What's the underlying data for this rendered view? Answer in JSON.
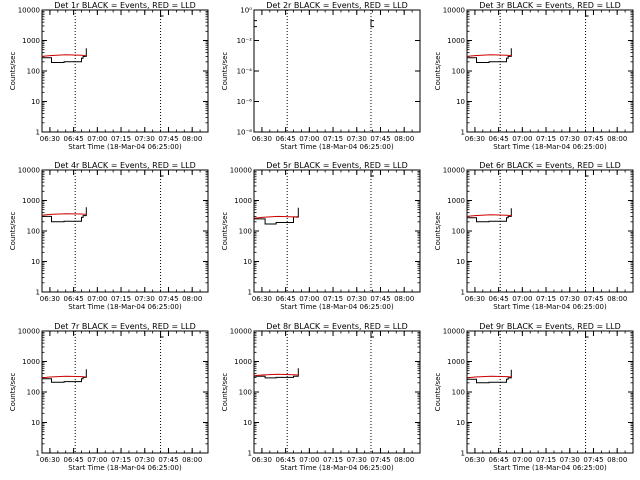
{
  "chart_data": [
    {
      "type": "line",
      "title": "Det 1r BLACK = Events, RED = LLD",
      "xlabel": "Start Time (18-Mar-04 06:25:00)",
      "ylabel": "Counts/sec",
      "y_scale": "log",
      "ylim": [
        1,
        10000
      ],
      "yticks": [
        "1",
        "10",
        "100",
        "1000",
        "10000"
      ],
      "xlim": [
        "06:25",
        "08:10"
      ],
      "xticks": [
        "06:30",
        "06:45",
        "07:00",
        "07:15",
        "07:30",
        "07:45",
        "08:00"
      ],
      "vlines": [
        "06:46",
        "07:40"
      ],
      "marker": {
        "x": "07:40",
        "y": 10000
      },
      "series": [
        {
          "color": "#000000",
          "x": [
            "06:25",
            "06:31",
            "06:31",
            "06:39",
            "06:39",
            "06:50",
            "06:50",
            "06:51",
            "06:51",
            "06:53",
            "06:53"
          ],
          "y": [
            270,
            270,
            190,
            190,
            200,
            200,
            260,
            260,
            300,
            300,
            560
          ]
        },
        {
          "color": "#cc0000",
          "x": [
            "06:25",
            "06:30",
            "06:40",
            "06:50",
            "06:53"
          ],
          "y": [
            300,
            320,
            340,
            330,
            320
          ]
        }
      ]
    },
    {
      "type": "line",
      "title": "Det 2r BLACK = Events, RED = LLD",
      "xlabel": "Start Time (18-Mar-04 06:25:00)",
      "ylabel": "Counts/sec",
      "y_scale": "log",
      "ylim": [
        1e-08,
        1
      ],
      "yticks": [
        "10⁻⁸",
        "10⁻⁶",
        "10⁻⁴",
        "10⁻²",
        "10⁰"
      ],
      "xlim": [
        "06:25",
        "08:10"
      ],
      "xticks": [
        "06:30",
        "06:45",
        "07:00",
        "07:15",
        "07:30",
        "07:45",
        "08:00"
      ],
      "vlines": [
        "06:46",
        "07:39"
      ],
      "marker": {
        "x": "07:39",
        "y": 0.2
      },
      "marker2": {
        "x": "06:25",
        "y": 0.2
      },
      "series": []
    },
    {
      "type": "line",
      "title": "Det 3r BLACK = Events, RED = LLD",
      "xlabel": "Start Time (18-Mar-04 06:25:00)",
      "ylabel": "Counts/sec",
      "y_scale": "log",
      "ylim": [
        1,
        10000
      ],
      "yticks": [
        "1",
        "10",
        "100",
        "1000",
        "10000"
      ],
      "xlim": [
        "06:25",
        "08:10"
      ],
      "xticks": [
        "06:30",
        "06:45",
        "07:00",
        "07:15",
        "07:30",
        "07:45",
        "08:00"
      ],
      "vlines": [
        "06:46",
        "07:40"
      ],
      "marker": {
        "x": "07:40",
        "y": 10000
      },
      "series": [
        {
          "color": "#000000",
          "x": [
            "06:25",
            "06:31",
            "06:31",
            "06:39",
            "06:39",
            "06:50",
            "06:50",
            "06:51",
            "06:51",
            "06:53",
            "06:53"
          ],
          "y": [
            270,
            270,
            190,
            190,
            200,
            200,
            260,
            260,
            300,
            300,
            560
          ]
        },
        {
          "color": "#cc0000",
          "x": [
            "06:25",
            "06:30",
            "06:40",
            "06:50",
            "06:53"
          ],
          "y": [
            300,
            320,
            340,
            330,
            320
          ]
        }
      ]
    },
    {
      "type": "line",
      "title": "Det 4r BLACK = Events, RED = LLD",
      "xlabel": "Start Time (18-Mar-04 06:25:00)",
      "ylabel": "Counts/sec",
      "y_scale": "log",
      "ylim": [
        1,
        10000
      ],
      "yticks": [
        "1",
        "10",
        "100",
        "1000",
        "10000"
      ],
      "xlim": [
        "06:25",
        "08:10"
      ],
      "xticks": [
        "06:30",
        "06:45",
        "07:00",
        "07:15",
        "07:30",
        "07:45",
        "08:00"
      ],
      "vlines": [
        "06:46",
        "07:40"
      ],
      "marker": {
        "x": "07:40",
        "y": 10000
      },
      "series": [
        {
          "color": "#000000",
          "x": [
            "06:25",
            "06:31",
            "06:31",
            "06:39",
            "06:39",
            "06:50",
            "06:50",
            "06:51",
            "06:51",
            "06:53",
            "06:53"
          ],
          "y": [
            300,
            300,
            200,
            200,
            210,
            210,
            280,
            280,
            320,
            320,
            600
          ]
        },
        {
          "color": "#cc0000",
          "x": [
            "06:25",
            "06:30",
            "06:40",
            "06:50",
            "06:53"
          ],
          "y": [
            330,
            350,
            370,
            360,
            350
          ]
        }
      ]
    },
    {
      "type": "line",
      "title": "Det 5r BLACK = Events, RED = LLD",
      "xlabel": "Start Time (18-Mar-04 06:25:00)",
      "ylabel": "Counts/sec",
      "y_scale": "log",
      "ylim": [
        1,
        10000
      ],
      "yticks": [
        "1",
        "10",
        "100",
        "1000",
        "10000"
      ],
      "xlim": [
        "06:25",
        "08:10"
      ],
      "xticks": [
        "06:30",
        "06:45",
        "07:00",
        "07:15",
        "07:30",
        "07:45",
        "08:00"
      ],
      "vlines": [
        "06:46",
        "07:39"
      ],
      "marker": {
        "x": "07:39",
        "y": 10000
      },
      "series": [
        {
          "color": "#000000",
          "x": [
            "06:25",
            "06:32",
            "06:32",
            "06:39",
            "06:39",
            "06:50",
            "06:50",
            "06:53",
            "06:53"
          ],
          "y": [
            250,
            250,
            170,
            170,
            190,
            190,
            290,
            290,
            580
          ]
        },
        {
          "color": "#cc0000",
          "x": [
            "06:25",
            "06:30",
            "06:40",
            "06:50",
            "06:53"
          ],
          "y": [
            260,
            280,
            300,
            290,
            280
          ]
        }
      ]
    },
    {
      "type": "line",
      "title": "Det 6r BLACK = Events, RED = LLD",
      "xlabel": "Start Time (18-Mar-04 06:25:00)",
      "ylabel": "Counts/sec",
      "y_scale": "log",
      "ylim": [
        1,
        10000
      ],
      "yticks": [
        "1",
        "10",
        "100",
        "1000",
        "10000"
      ],
      "xlim": [
        "06:25",
        "08:10"
      ],
      "xticks": [
        "06:30",
        "06:45",
        "07:00",
        "07:15",
        "07:30",
        "07:45",
        "08:00"
      ],
      "vlines": [
        "06:46",
        "07:40"
      ],
      "marker": {
        "x": "07:40",
        "y": 10000
      },
      "series": [
        {
          "color": "#000000",
          "x": [
            "06:25",
            "06:31",
            "06:31",
            "06:39",
            "06:39",
            "06:50",
            "06:50",
            "06:51",
            "06:51",
            "06:53",
            "06:53"
          ],
          "y": [
            270,
            270,
            200,
            200,
            210,
            210,
            270,
            270,
            300,
            300,
            560
          ]
        },
        {
          "color": "#cc0000",
          "x": [
            "06:25",
            "06:30",
            "06:40",
            "06:50",
            "06:53"
          ],
          "y": [
            300,
            320,
            340,
            330,
            320
          ]
        }
      ]
    },
    {
      "type": "line",
      "title": "Det 7r BLACK = Events, RED = LLD",
      "xlabel": "Start Time (18-Mar-04 06:25:00)",
      "ylabel": "Counts/sec",
      "y_scale": "log",
      "ylim": [
        1,
        10000
      ],
      "yticks": [
        "1",
        "10",
        "100",
        "1000",
        "10000"
      ],
      "xlim": [
        "06:25",
        "08:10"
      ],
      "xticks": [
        "06:30",
        "06:45",
        "07:00",
        "07:15",
        "07:30",
        "07:45",
        "08:00"
      ],
      "vlines": [
        "06:46",
        "07:40"
      ],
      "marker": {
        "x": "07:40",
        "y": 10000
      },
      "series": [
        {
          "color": "#000000",
          "x": [
            "06:25",
            "06:31",
            "06:31",
            "06:39",
            "06:39",
            "06:50",
            "06:50",
            "06:51",
            "06:51",
            "06:53",
            "06:53"
          ],
          "y": [
            270,
            270,
            210,
            210,
            220,
            220,
            270,
            270,
            300,
            300,
            560
          ]
        },
        {
          "color": "#cc0000",
          "x": [
            "06:25",
            "06:30",
            "06:40",
            "06:50",
            "06:53"
          ],
          "y": [
            290,
            310,
            330,
            320,
            310
          ]
        }
      ]
    },
    {
      "type": "line",
      "title": "Det 8r BLACK = Events, RED = LLD",
      "xlabel": "Start Time (18-Mar-04 06:25:00)",
      "ylabel": "Counts/sec",
      "y_scale": "log",
      "ylim": [
        1,
        10000
      ],
      "yticks": [
        "1",
        "10",
        "100",
        "1000",
        "10000"
      ],
      "xlim": [
        "06:25",
        "08:10"
      ],
      "xticks": [
        "06:30",
        "06:45",
        "07:00",
        "07:15",
        "07:30",
        "07:45",
        "08:00"
      ],
      "vlines": [
        "06:46",
        "07:39"
      ],
      "marker": {
        "x": "07:39",
        "y": 10000
      },
      "series": [
        {
          "color": "#000000",
          "x": [
            "06:25",
            "06:32",
            "06:32",
            "06:39",
            "06:39",
            "06:50",
            "06:50",
            "06:53",
            "06:53"
          ],
          "y": [
            330,
            330,
            290,
            290,
            300,
            300,
            330,
            330,
            600
          ]
        },
        {
          "color": "#cc0000",
          "x": [
            "06:25",
            "06:30",
            "06:40",
            "06:50",
            "06:53"
          ],
          "y": [
            340,
            360,
            380,
            370,
            360
          ]
        }
      ]
    },
    {
      "type": "line",
      "title": "Det 9r BLACK = Events, RED = LLD",
      "xlabel": "Start Time (18-Mar-04 06:25:00)",
      "ylabel": "Counts/sec",
      "y_scale": "log",
      "ylim": [
        1,
        10000
      ],
      "yticks": [
        "1",
        "10",
        "100",
        "1000",
        "10000"
      ],
      "xlim": [
        "06:25",
        "08:10"
      ],
      "xticks": [
        "06:30",
        "06:45",
        "07:00",
        "07:15",
        "07:30",
        "07:45",
        "08:00"
      ],
      "vlines": [
        "06:46",
        "07:40"
      ],
      "marker": {
        "x": "07:40",
        "y": 10000
      },
      "series": [
        {
          "color": "#000000",
          "x": [
            "06:25",
            "06:31",
            "06:31",
            "06:39",
            "06:39",
            "06:50",
            "06:50",
            "06:51",
            "06:51",
            "06:53",
            "06:53"
          ],
          "y": [
            260,
            260,
            200,
            200,
            210,
            210,
            260,
            260,
            290,
            290,
            540
          ]
        },
        {
          "color": "#cc0000",
          "x": [
            "06:25",
            "06:30",
            "06:40",
            "06:50",
            "06:53"
          ],
          "y": [
            290,
            310,
            330,
            320,
            310
          ]
        }
      ]
    }
  ]
}
